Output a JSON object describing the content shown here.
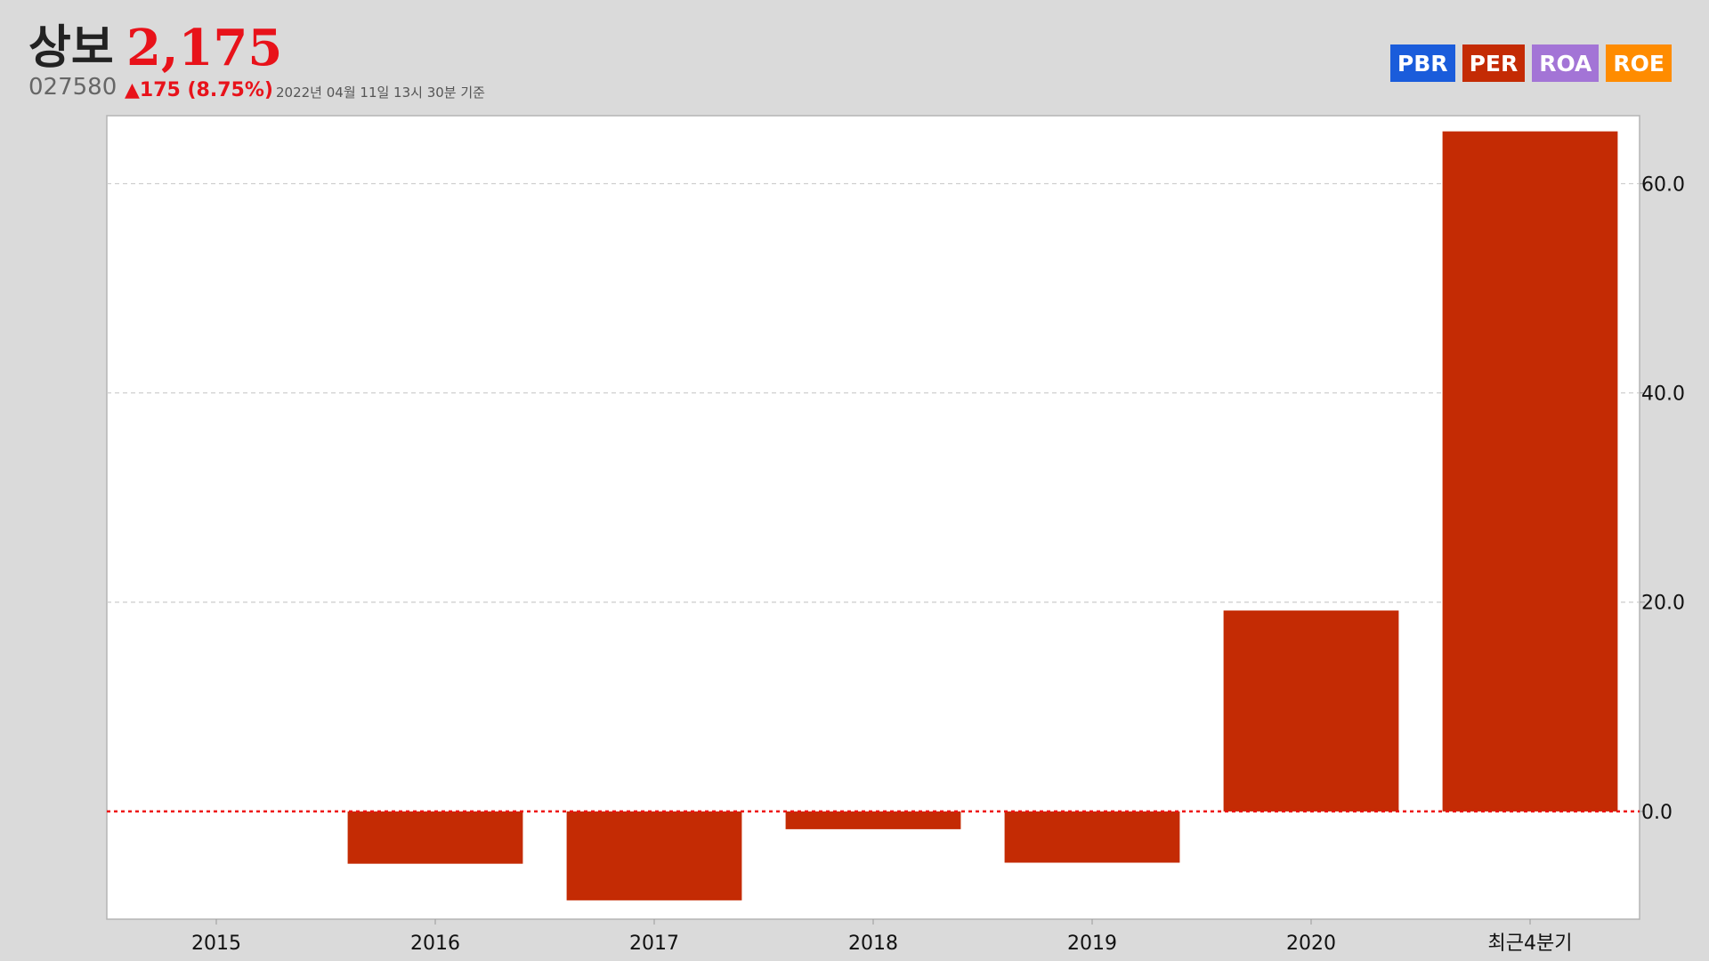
{
  "stock": {
    "name": "상보",
    "price": "2,175",
    "code": "027580",
    "change": "▲175 (8.75%)",
    "timestamp": "2022년 04월 11일 13시 30분 기준",
    "price_color": "#e8121a"
  },
  "tabs": [
    {
      "label": "PBR",
      "color": "#1a5cdb"
    },
    {
      "label": "PER",
      "color": "#c42b04"
    },
    {
      "label": "ROA",
      "color": "#a374d6"
    },
    {
      "label": "ROE",
      "color": "#ff8c00"
    }
  ],
  "chart_data": {
    "type": "bar",
    "categories": [
      "2015",
      "2016",
      "2017",
      "2018",
      "2019",
      "2020",
      "최근4분기"
    ],
    "values": [
      null,
      -5.0,
      -8.5,
      -1.7,
      -4.9,
      19.2,
      65.0
    ],
    "ylim": [
      -10.3,
      66.5
    ],
    "yticks": [
      0.0,
      20.0,
      40.0,
      60.0
    ],
    "ytick_labels": [
      "0.0",
      "20.0",
      "40.0",
      "60.0"
    ],
    "bar_color": "#c42b04",
    "zero_line_color": "#ee1111",
    "grid": true,
    "y_axis_side": "right"
  }
}
